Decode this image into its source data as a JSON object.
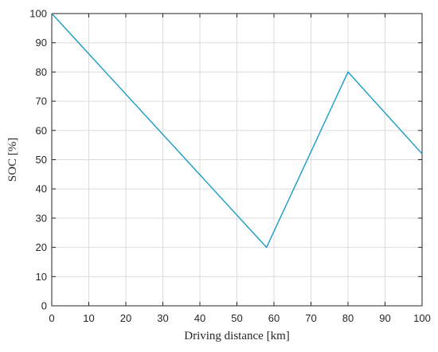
{
  "chart_data": {
    "type": "line",
    "xlabel": "Driving distance [km]",
    "ylabel": "SOC [%]",
    "xlim": [
      0,
      100
    ],
    "ylim": [
      0,
      100
    ],
    "xticks": [
      0,
      10,
      20,
      30,
      40,
      50,
      60,
      70,
      80,
      90,
      100
    ],
    "yticks": [
      0,
      10,
      20,
      30,
      40,
      50,
      60,
      70,
      80,
      90,
      100
    ],
    "grid": true,
    "series": [
      {
        "color": "#1a9dc9",
        "x": [
          0,
          58,
          80,
          100
        ],
        "y": [
          100,
          20,
          80,
          52
        ]
      }
    ]
  }
}
